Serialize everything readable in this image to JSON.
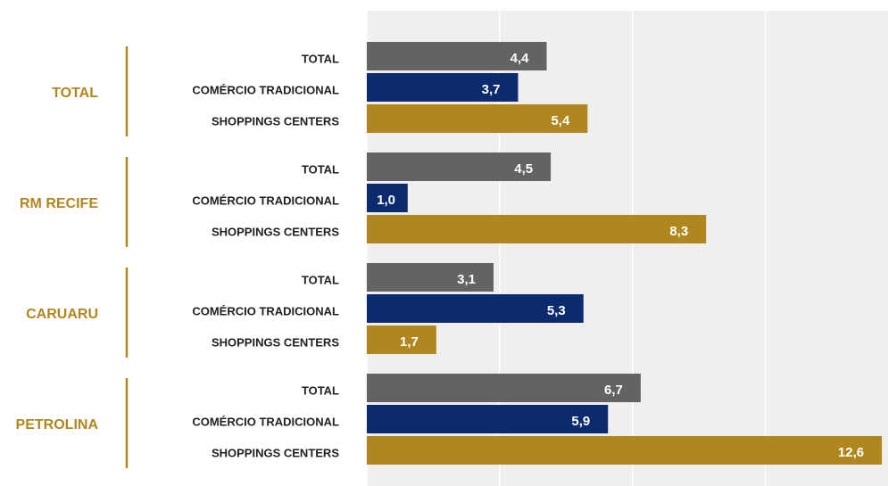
{
  "chart_data": {
    "type": "grouped-hbar",
    "categories": [
      "TOTAL",
      "RM RECIFE",
      "CARUARU",
      "PETROLINA"
    ],
    "series": [
      {
        "name": "TOTAL",
        "color": "#636366",
        "values": [
          4.4,
          4.5,
          3.1,
          6.7
        ],
        "value_labels": [
          "4,4",
          "4,5",
          "3,1",
          "6,7"
        ]
      },
      {
        "name": "COMÉRCIO TRADICIONAL",
        "color": "#0c2b6f",
        "values": [
          3.7,
          1.0,
          5.3,
          5.9
        ],
        "value_labels": [
          "3,7",
          "1,0",
          "5,3",
          "5,9"
        ]
      },
      {
        "name": "SHOPPINGS CENTERS",
        "color": "#b0861f",
        "values": [
          5.4,
          8.3,
          1.7,
          12.6
        ],
        "value_labels": [
          "5,4",
          "8,3",
          "1,7",
          "12,6"
        ]
      }
    ],
    "xlim": [
      0,
      12.75
    ],
    "xticks": [
      0,
      3.25,
      6.5,
      9.75
    ],
    "grid": true,
    "group_color": "#b0861f"
  }
}
